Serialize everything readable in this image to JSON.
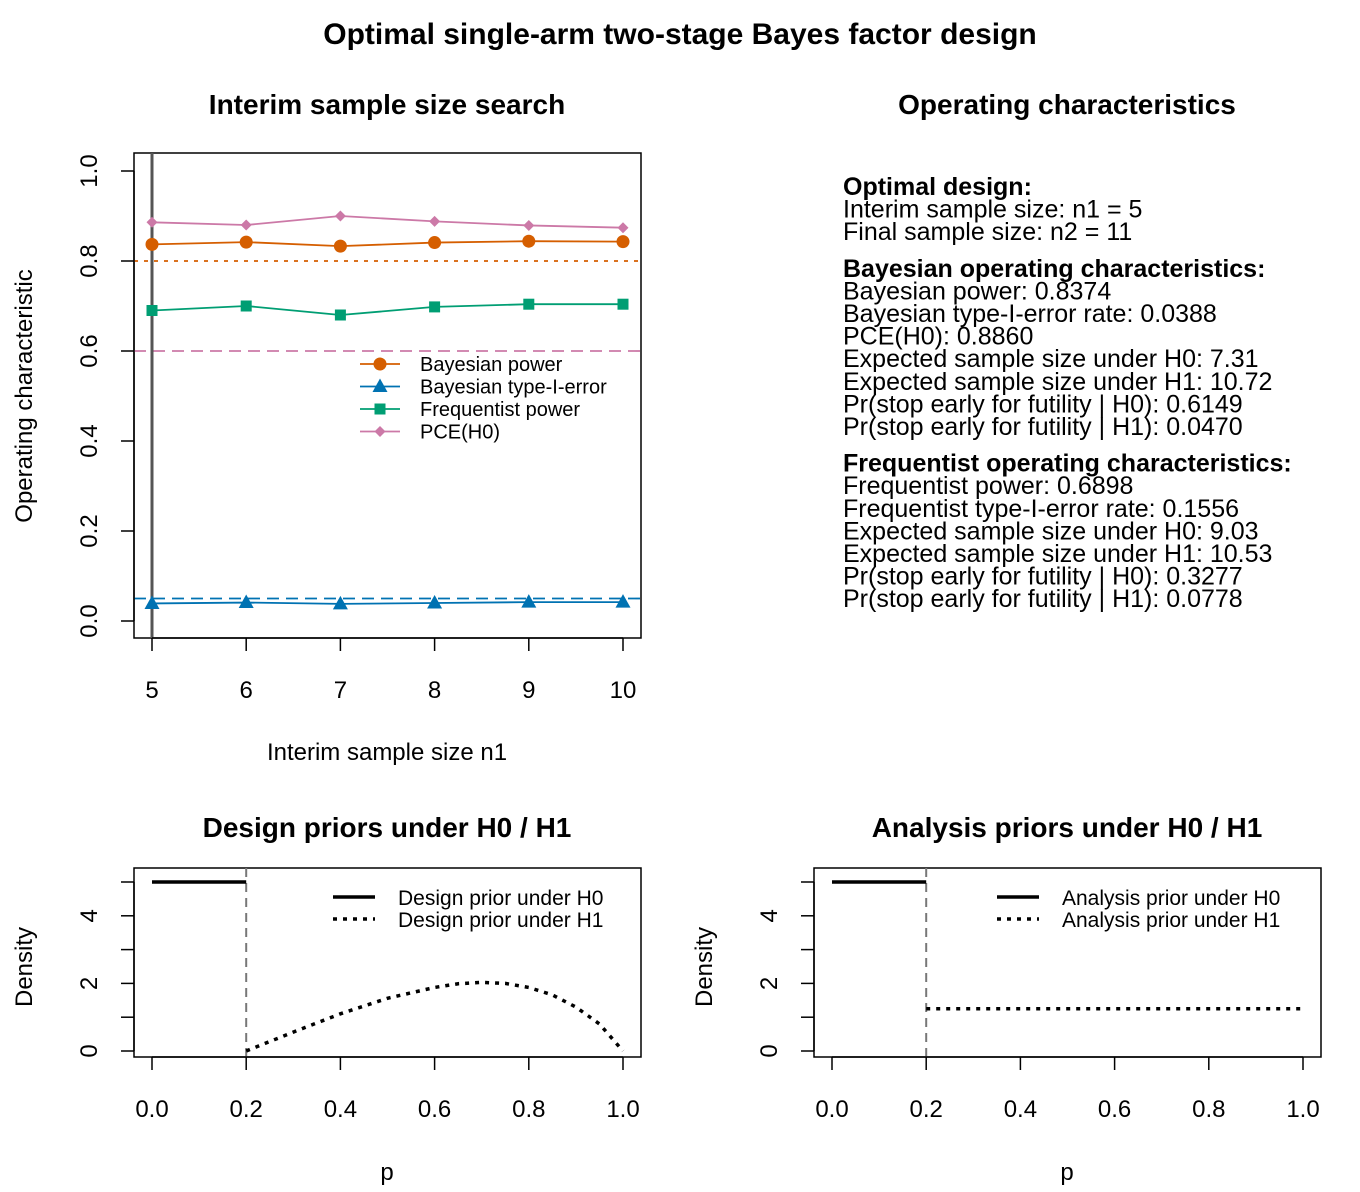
{
  "figure": {
    "title": "Optimal single-arm two-stage Bayes factor design"
  },
  "chart_data": [
    {
      "id": "interim",
      "type": "line",
      "title": "Interim sample size search",
      "xlabel": "Interim sample size n1",
      "ylabel": "Operating characteristic",
      "x": [
        5,
        6,
        7,
        8,
        9,
        10
      ],
      "xlim": [
        5,
        10
      ],
      "ylim": [
        0,
        1
      ],
      "xticks": [
        "5",
        "6",
        "7",
        "8",
        "9",
        "10"
      ],
      "yticks": [
        "0.0",
        "0.2",
        "0.4",
        "0.6",
        "0.8",
        "1.0"
      ],
      "series": [
        {
          "name": "Bayesian power",
          "color": "#D55E00",
          "marker": "circle",
          "values": [
            0.837,
            0.842,
            0.833,
            0.841,
            0.844,
            0.843
          ]
        },
        {
          "name": "Bayesian type-I-error",
          "color": "#0072B2",
          "marker": "triangle",
          "values": [
            0.039,
            0.041,
            0.038,
            0.04,
            0.042,
            0.042
          ]
        },
        {
          "name": "Frequentist power",
          "color": "#009E73",
          "marker": "square",
          "values": [
            0.69,
            0.7,
            0.68,
            0.698,
            0.704,
            0.704
          ]
        },
        {
          "name": "PCE(H0)",
          "color": "#CC79A7",
          "marker": "diamond",
          "values": [
            0.886,
            0.88,
            0.9,
            0.888,
            0.879,
            0.874
          ]
        }
      ],
      "reference_lines": [
        {
          "y": 0.8,
          "color": "#D55E00",
          "style": "dotted"
        },
        {
          "y": 0.6,
          "color": "#CC79A7",
          "style": "dashed"
        },
        {
          "y": 0.05,
          "color": "#0072B2",
          "style": "dashed"
        }
      ],
      "vertical_line": {
        "x": 5,
        "color": "#555555"
      },
      "legend_position": "middle-right"
    },
    {
      "id": "design_priors",
      "type": "line",
      "title": "Design priors under H0 / H1",
      "xlabel": "p",
      "ylabel": "Density",
      "xlim": [
        0,
        1
      ],
      "ylim": [
        0,
        5
      ],
      "xticks": [
        "0.0",
        "0.2",
        "0.4",
        "0.6",
        "0.8",
        "1.0"
      ],
      "yticks": [
        "0",
        "2",
        "4"
      ],
      "series": [
        {
          "name": "Design prior under H0",
          "style": "solid",
          "x": [
            0.0,
            0.2
          ],
          "values": [
            5.0,
            5.0
          ]
        },
        {
          "name": "Design prior under H1",
          "style": "dotted",
          "x": [
            0.2,
            0.3,
            0.4,
            0.5,
            0.6,
            0.65,
            0.7,
            0.75,
            0.8,
            0.85,
            0.9,
            0.95,
            1.0
          ],
          "values": [
            0.0,
            0.56,
            1.1,
            1.56,
            1.88,
            1.99,
            2.03,
            2.0,
            1.88,
            1.66,
            1.3,
            0.8,
            0.0
          ]
        }
      ],
      "threshold": {
        "x": 0.2
      },
      "legend_position": "top-right"
    },
    {
      "id": "analysis_priors",
      "type": "line",
      "title": "Analysis priors under H0 / H1",
      "xlabel": "p",
      "ylabel": "Density",
      "xlim": [
        0,
        1
      ],
      "ylim": [
        0,
        5
      ],
      "xticks": [
        "0.0",
        "0.2",
        "0.4",
        "0.6",
        "0.8",
        "1.0"
      ],
      "yticks": [
        "0",
        "2",
        "4"
      ],
      "series": [
        {
          "name": "Analysis prior under H0",
          "style": "solid",
          "x": [
            0.0,
            0.2
          ],
          "values": [
            5.0,
            5.0
          ]
        },
        {
          "name": "Analysis prior under H1",
          "style": "dotted",
          "x": [
            0.2,
            1.0
          ],
          "values": [
            1.25,
            1.25
          ]
        }
      ],
      "threshold": {
        "x": 0.2
      },
      "legend_position": "top-right"
    }
  ],
  "oc_panel": {
    "title": "Operating characteristics",
    "sections": [
      {
        "heading": "Optimal design:",
        "lines": [
          "Interim sample size: n1 = 5",
          "Final sample size: n2 = 11"
        ]
      },
      {
        "heading": "Bayesian operating characteristics:",
        "lines": [
          "Bayesian power: 0.8374",
          "Bayesian type-I-error rate: 0.0388",
          "PCE(H0): 0.8860",
          "Expected sample size under H0: 7.31",
          "Expected sample size under H1: 10.72",
          "Pr(stop early for futility | H0): 0.6149",
          "Pr(stop early for futility | H1): 0.0470"
        ]
      },
      {
        "heading": "Frequentist operating characteristics:",
        "lines": [
          "Frequentist power: 0.6898",
          "Frequentist type-I-error rate: 0.1556",
          "Expected sample size under H0: 9.03",
          "Expected sample size under H1: 10.53",
          "Pr(stop early for futility | H0): 0.3277",
          "Pr(stop early for futility | H1): 0.0778"
        ]
      }
    ]
  }
}
